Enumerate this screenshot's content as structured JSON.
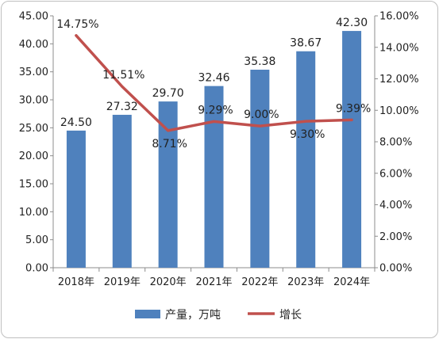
{
  "chart_data": {
    "type": "bar+line",
    "categories": [
      "2018年",
      "2019年",
      "2020年",
      "2021年",
      "2022年",
      "2023年",
      "2024年"
    ],
    "series": [
      {
        "name": "产量，万吨",
        "type": "bar",
        "axis": "left",
        "values": [
          24.5,
          27.32,
          29.7,
          32.46,
          35.38,
          38.67,
          42.3
        ],
        "labels": [
          "24.50",
          "27.32",
          "29.70",
          "32.46",
          "35.38",
          "38.67",
          "42.30"
        ],
        "color": "#4f81bd"
      },
      {
        "name": "增长",
        "type": "line",
        "axis": "right",
        "values": [
          14.75,
          11.51,
          8.71,
          9.29,
          9.0,
          9.3,
          9.39
        ],
        "labels": [
          "14.75%",
          "11.51%",
          "8.71%",
          "9.29%",
          "9.00%",
          "9.30%",
          "9.39%"
        ],
        "color": "#c0504d"
      }
    ],
    "y_left": {
      "range": [
        0,
        45
      ],
      "ticks": [
        "0.00",
        "5.00",
        "10.00",
        "15.00",
        "20.00",
        "25.00",
        "30.00",
        "35.00",
        "40.00",
        "45.00"
      ]
    },
    "y_right": {
      "range": [
        0,
        16
      ],
      "ticks": [
        "0.00%",
        "2.00%",
        "4.00%",
        "6.00%",
        "8.00%",
        "10.00%",
        "12.00%",
        "14.00%",
        "16.00%"
      ]
    },
    "grid": false,
    "legend": "bottom"
  }
}
